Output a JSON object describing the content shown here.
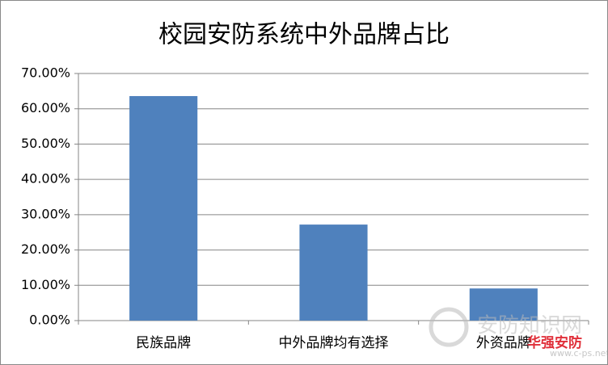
{
  "chart_data": {
    "type": "bar",
    "title": "校园安防系统中外品牌占比",
    "categories": [
      "民族品牌",
      "中外品牌均有选择",
      "外资品牌"
    ],
    "values": [
      63.6,
      27.2,
      9.1
    ],
    "color": "#4f81bd",
    "ylim": [
      0,
      70
    ],
    "yticks": [
      {
        "value": 0,
        "label": "0.00%"
      },
      {
        "value": 10,
        "label": "10.00%"
      },
      {
        "value": 20,
        "label": "20.00%"
      },
      {
        "value": 30,
        "label": "30.00%"
      },
      {
        "value": 40,
        "label": "40.00%"
      },
      {
        "value": 50,
        "label": "50.00%"
      },
      {
        "value": 60,
        "label": "60.00%"
      },
      {
        "value": 70,
        "label": "70.00%"
      }
    ],
    "grid": true
  },
  "watermark": {
    "site": "安防知识网",
    "url": "www.c-ps.net",
    "brand": "华强安防"
  }
}
